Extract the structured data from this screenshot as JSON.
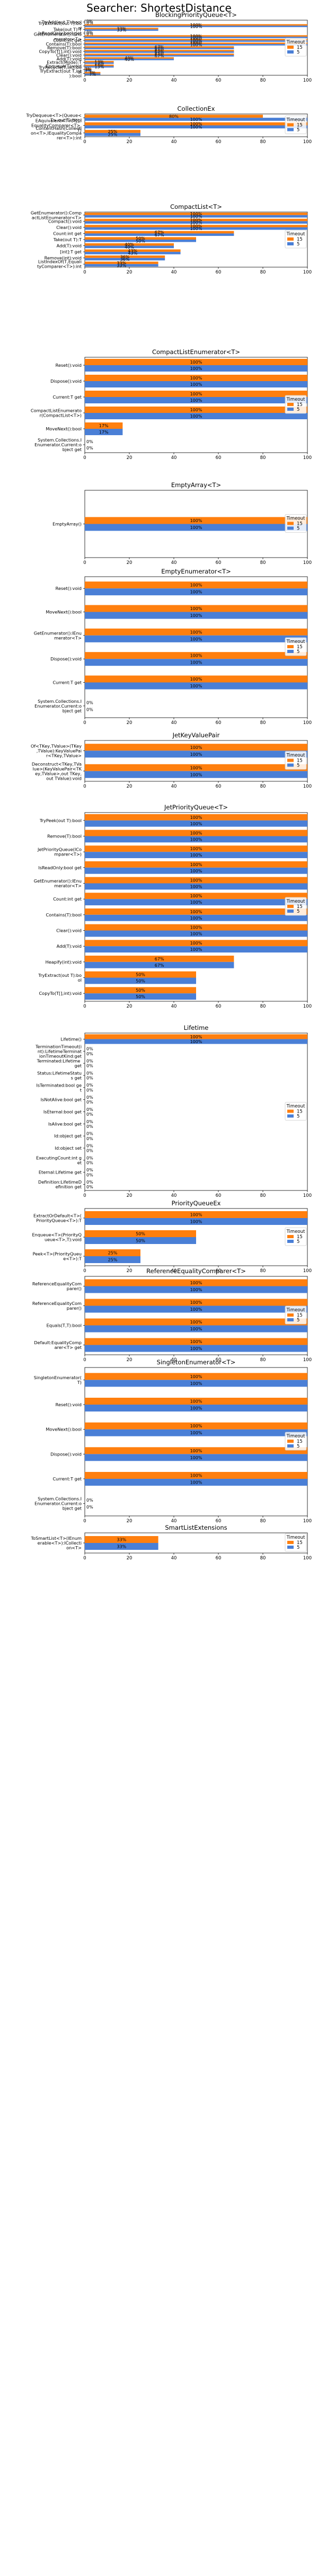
{
  "title": "Searcher: ShortestDistance",
  "colors": {
    "series_15": "#ff7f0e",
    "series_5": "#4a7fd6",
    "axes": "#000000",
    "legend_border": "#cccccc"
  },
  "chart_data": [
    {
      "type": "bar",
      "orientation": "horizontal",
      "title": "BlockingPriorityQueue<T>",
      "xlim": [
        0,
        100
      ],
      "xticks": [
        0,
        20,
        40,
        60,
        80,
        100
      ],
      "legend": {
        "title": "Timeout",
        "entries": [
          "15",
          "5"
        ],
        "position": "right-middle"
      },
      "categories": [
        "TryAdd(out T):bool",
        "TryExtract(out T):bool",
        "Take(out T):T",
        "IsReadOnly:bool get",
        "GetEnumerator():IEnumerator<T>",
        "Count:int get",
        "Contains(T):bool",
        "Remove(T):bool",
        "CopyTo(T[],int):void",
        "Clear():void",
        "Add(T):void",
        "Extract(Mode):T",
        "Enqueue(T):void",
        "TryRecycle(T,int):bool",
        "TryExtract(out T,int):bool"
      ],
      "series": [
        {
          "name": "15",
          "values": [
            0,
            100,
            33,
            0,
            100,
            100,
            100,
            67,
            67,
            67,
            40,
            13,
            13,
            3,
            7
          ]
        },
        {
          "name": "5",
          "values": [
            0,
            100,
            33,
            0,
            100,
            100,
            100,
            67,
            67,
            67,
            40,
            13,
            13,
            3,
            7
          ]
        }
      ]
    },
    {
      "type": "bar",
      "orientation": "horizontal",
      "title": "CollectionEx",
      "xlim": [
        0,
        100
      ],
      "xticks": [
        0,
        20,
        40,
        60,
        80,
        100
      ],
      "legend": {
        "title": "Timeout",
        "entries": [
          "15",
          "5"
        ],
        "position": "right-middle"
      },
      "categories": [
        "TryDequeue<T>(Queue<T>,out T):bool",
        "EAquivalent<T>(T[],IEqualityComparer<T>,T)",
        "ContentHash(Collection<T>,IEqualityComparer<T>):int"
      ],
      "series": [
        {
          "name": "15",
          "values": [
            80,
            100,
            25
          ]
        },
        {
          "name": "5",
          "values": [
            100,
            100,
            25
          ]
        }
      ]
    },
    {
      "type": "bar",
      "orientation": "horizontal",
      "title": "CompactList<T>",
      "xlim": [
        0,
        100
      ],
      "xticks": [
        0,
        20,
        40,
        60,
        80,
        100
      ],
      "legend": {
        "title": "Timeout",
        "entries": [
          "15",
          "5"
        ],
        "position": "right-middle"
      },
      "categories": [
        "GetEnumerator():CompactListEnumerator<T>",
        "Compact():void",
        "Clear():void",
        "Count:int get",
        "Take(out T):T",
        "Add(T):void",
        "[int]:T get",
        "Remove(int):void",
        "ListIndexOf(T,EqualityComparer<T>):int"
      ],
      "series": [
        {
          "name": "15",
          "values": [
            100,
            100,
            100,
            67,
            50,
            40,
            43,
            36,
            33
          ]
        },
        {
          "name": "5",
          "values": [
            100,
            100,
            100,
            67,
            50,
            40,
            43,
            36,
            33
          ]
        }
      ]
    },
    {
      "type": "bar",
      "orientation": "horizontal",
      "title": "CompactListEnumerator<T>",
      "xlim": [
        0,
        100
      ],
      "xticks": [
        0,
        20,
        40,
        60,
        80,
        100
      ],
      "legend": {
        "title": "Timeout",
        "entries": [
          "15",
          "5"
        ],
        "position": "right-middle"
      },
      "categories": [
        "Reset():void",
        "Dispose():void",
        "Current:T get",
        "CompactListEnumerator(CompactList<T>)",
        "MoveNext():bool",
        "System.Collections.IEnumerator.Current:object get"
      ],
      "series": [
        {
          "name": "15",
          "values": [
            100,
            100,
            100,
            100,
            17,
            0
          ]
        },
        {
          "name": "5",
          "values": [
            100,
            100,
            100,
            100,
            17,
            0
          ]
        }
      ]
    },
    {
      "type": "bar",
      "orientation": "horizontal",
      "title": "EmptyArray<T>",
      "xlim": [
        0,
        100
      ],
      "xticks": [
        0,
        20,
        40,
        60,
        80,
        100
      ],
      "legend": {
        "title": "Timeout",
        "entries": [
          "15",
          "5"
        ],
        "position": "right-middle"
      },
      "categories": [
        "EmptyArray()"
      ],
      "series": [
        {
          "name": "15",
          "values": [
            100
          ]
        },
        {
          "name": "5",
          "values": [
            100
          ]
        }
      ]
    },
    {
      "type": "bar",
      "orientation": "horizontal",
      "title": "EmptyEnumerator<T>",
      "xlim": [
        0,
        100
      ],
      "xticks": [
        0,
        20,
        40,
        60,
        80,
        100
      ],
      "legend": {
        "title": "Timeout",
        "entries": [
          "15",
          "5"
        ],
        "position": "right-middle"
      },
      "categories": [
        "Reset():void",
        "MoveNext():bool",
        "GetEnumerator():IEnumerator<T>",
        "Dispose():void",
        "Current:T get",
        "System.Collections.IEnumerator.Current:object get"
      ],
      "series": [
        {
          "name": "15",
          "values": [
            100,
            100,
            100,
            100,
            100,
            0
          ]
        },
        {
          "name": "5",
          "values": [
            100,
            100,
            100,
            100,
            100,
            0
          ]
        }
      ]
    },
    {
      "type": "bar",
      "orientation": "horizontal",
      "title": "JetKeyValuePair",
      "xlim": [
        0,
        100
      ],
      "xticks": [
        0,
        20,
        40,
        60,
        80,
        100
      ],
      "legend": {
        "title": "Timeout",
        "entries": [
          "15",
          "5"
        ],
        "position": "right-middle"
      },
      "categories": [
        "Of<TKey,TValue>(TKey,TValue):KeyValuePair<TKey,TValue>",
        "Deconstruct<TKey,TValue>(KeyValuePair<TKey,TValue>,out TKey,out TValue):void"
      ],
      "series": [
        {
          "name": "15",
          "values": [
            100,
            100
          ]
        },
        {
          "name": "5",
          "values": [
            100,
            100
          ]
        }
      ]
    },
    {
      "type": "bar",
      "orientation": "horizontal",
      "title": "JetPriorityQueue<T>",
      "xlim": [
        0,
        100
      ],
      "xticks": [
        0,
        20,
        40,
        60,
        80,
        100
      ],
      "legend": {
        "title": "Timeout",
        "entries": [
          "15",
          "5"
        ],
        "position": "right-middle"
      },
      "categories": [
        "TryPeek(out T):bool",
        "Remove(T):bool",
        "JetPriorityQueue(IComparer<T>)",
        "IsReadOnly:bool get",
        "GetEnumerator():IEnumerator<T>",
        "Count:int get",
        "Contains(T):bool",
        "Clear():void",
        "Add(T):void",
        "Heapify(int):void",
        "TryExtract(out T):bool",
        "CopyTo(T[],int):void"
      ],
      "series": [
        {
          "name": "15",
          "values": [
            100,
            100,
            100,
            100,
            100,
            100,
            100,
            100,
            100,
            67,
            50,
            50
          ]
        },
        {
          "name": "5",
          "values": [
            100,
            100,
            100,
            100,
            100,
            100,
            100,
            100,
            100,
            67,
            50,
            50
          ]
        }
      ]
    },
    {
      "type": "bar",
      "orientation": "horizontal",
      "title": "Lifetime",
      "xlim": [
        0,
        100
      ],
      "xticks": [
        0,
        20,
        40,
        60,
        80,
        100
      ],
      "legend": {
        "title": "Timeout",
        "entries": [
          "15",
          "5"
        ],
        "position": "right-middle"
      },
      "categories": [
        "Lifetime()",
        "TerminationTimeout(int):LifetimeTerminationTimeoutKind:get",
        "Terminated:Lifetime get",
        "Status:LifetimeStatus get",
        "IsTerminated:bool get",
        "IsNotAlive:bool get",
        "IsEternal:bool get",
        "IsAlive:bool get",
        "Id:object get",
        "Id:object set",
        "ExecutingCount:int get",
        "Eternal:Lifetime get",
        "Definition:LifetimeDefinition get"
      ],
      "series": [
        {
          "name": "15",
          "values": [
            100,
            0,
            0,
            0,
            0,
            0,
            0,
            0,
            0,
            0,
            0,
            0,
            0
          ]
        },
        {
          "name": "5",
          "values": [
            100,
            0,
            0,
            0,
            0,
            0,
            0,
            0,
            0,
            0,
            0,
            0,
            0
          ]
        }
      ]
    },
    {
      "type": "bar",
      "orientation": "horizontal",
      "title": "PriorityQueueEx",
      "xlim": [
        0,
        100
      ],
      "xticks": [
        0,
        20,
        40,
        60,
        80,
        100
      ],
      "legend": {
        "title": "Timeout",
        "entries": [
          "15",
          "5"
        ],
        "position": "right-middle"
      },
      "categories": [
        "ExtractOrDefault<T>(PriorityQueue<T>):T",
        "Enqueue<T>(PriorityQueue<T>,T):void",
        "Peek<T>(PriorityQueue<T>):T"
      ],
      "series": [
        {
          "name": "15",
          "values": [
            100,
            50,
            25
          ]
        },
        {
          "name": "5",
          "values": [
            100,
            50,
            25
          ]
        }
      ]
    },
    {
      "type": "bar",
      "orientation": "horizontal",
      "title": "ReferenceEqualityComparer<T>",
      "xlim": [
        0,
        100
      ],
      "xticks": [
        0,
        20,
        40,
        60,
        80,
        100
      ],
      "legend": {
        "title": "Timeout",
        "entries": [
          "15",
          "5"
        ],
        "position": "right-middle"
      },
      "categories": [
        "ReferenceEqualityComparer()",
        "ReferenceEqualityComparer()",
        "Equals(T,T):bool",
        "Default:EqualityComparer<T> get"
      ],
      "series": [
        {
          "name": "15",
          "values": [
            100,
            100,
            100,
            100
          ]
        },
        {
          "name": "5",
          "values": [
            100,
            100,
            100,
            100
          ]
        }
      ]
    },
    {
      "type": "bar",
      "orientation": "horizontal",
      "title": "SingletonEnumerator<T>",
      "xlim": [
        0,
        100
      ],
      "xticks": [
        0,
        20,
        40,
        60,
        80,
        100
      ],
      "legend": {
        "title": "Timeout",
        "entries": [
          "15",
          "5"
        ],
        "position": "right-middle"
      },
      "categories": [
        "SingletonEnumerator(T)",
        "Reset():void",
        "MoveNext():bool",
        "Dispose():void",
        "Current:T get",
        "System.Collections.IEnumerator.Current:object get"
      ],
      "series": [
        {
          "name": "15",
          "values": [
            100,
            100,
            100,
            100,
            100,
            0
          ]
        },
        {
          "name": "5",
          "values": [
            100,
            100,
            100,
            100,
            100,
            0
          ]
        }
      ]
    },
    {
      "type": "bar",
      "orientation": "horizontal",
      "title": "SmartListExtensions",
      "xlim": [
        0,
        100
      ],
      "xticks": [
        0,
        20,
        40,
        60,
        80,
        100
      ],
      "legend": {
        "title": "Timeout",
        "entries": [
          "15",
          "5"
        ],
        "position": "right-middle"
      },
      "categories": [
        "ToSmartList<T>(IEnumerable<T>):ICollection<T>"
      ],
      "series": [
        {
          "name": "15",
          "values": [
            33
          ]
        },
        {
          "name": "5",
          "values": [
            33
          ]
        }
      ]
    }
  ]
}
